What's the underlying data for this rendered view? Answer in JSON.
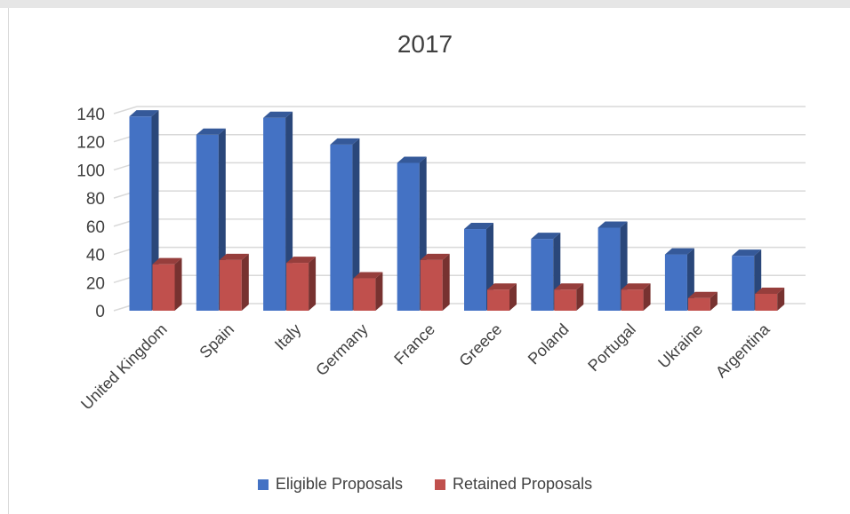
{
  "chart_data": {
    "type": "bar",
    "title": "2017",
    "categories": [
      "United Kingdom",
      "Spain",
      "Italy",
      "Germany",
      "France",
      "Greece",
      "Poland",
      "Portugal",
      "Ukraine",
      "Argentina"
    ],
    "series": [
      {
        "name": "Eligible Proposals",
        "color": "#4472c4",
        "values": [
          138,
          125,
          137,
          118,
          105,
          58,
          51,
          59,
          40,
          39
        ]
      },
      {
        "name": "Retained Proposals",
        "color": "#c0504d",
        "values": [
          33,
          36,
          34,
          23,
          36,
          15,
          15,
          15,
          9,
          12
        ]
      }
    ],
    "yticks": [
      0,
      20,
      40,
      60,
      80,
      100,
      120,
      140
    ],
    "ylim": [
      0,
      140
    ],
    "grid": true,
    "legend_position": "bottom",
    "style": "3d-clustered-column"
  }
}
